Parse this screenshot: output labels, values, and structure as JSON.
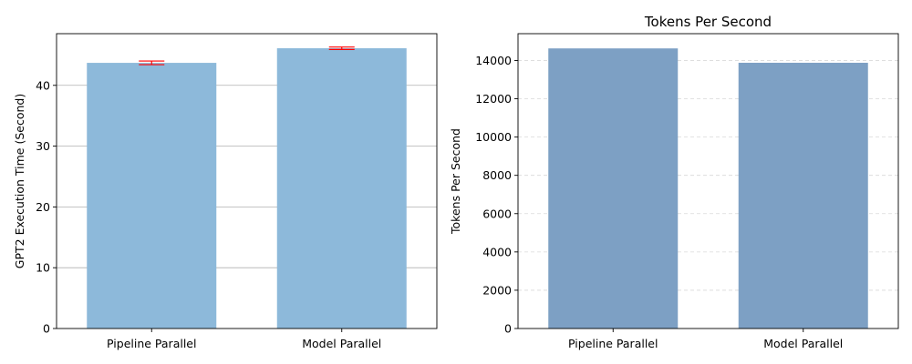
{
  "chart_data": [
    {
      "type": "bar",
      "title": "",
      "xlabel": "",
      "ylabel": "GPT2 Execution Time (Second)",
      "categories": [
        "Pipeline Parallel",
        "Model Parallel"
      ],
      "values": [
        43.7,
        46.1
      ],
      "error": [
        0.3,
        0.2
      ],
      "ylim": [
        0,
        48.5
      ],
      "yticks": [
        0,
        10,
        20,
        30,
        40
      ],
      "grid": "y-solid",
      "bar_color": "#8db9da",
      "error_color": "#ff0000",
      "grid_color": "#b0b0b0"
    },
    {
      "type": "bar",
      "title": "Tokens Per Second",
      "xlabel": "",
      "ylabel": "Tokens Per Second",
      "categories": [
        "Pipeline Parallel",
        "Model Parallel"
      ],
      "values": [
        14630,
        13880
      ],
      "ylim": [
        0,
        15400
      ],
      "yticks": [
        0,
        2000,
        4000,
        6000,
        8000,
        10000,
        12000,
        14000
      ],
      "grid": "y-dashed",
      "bar_color": "#7da0c4",
      "grid_color": "#d9d9d9"
    }
  ]
}
